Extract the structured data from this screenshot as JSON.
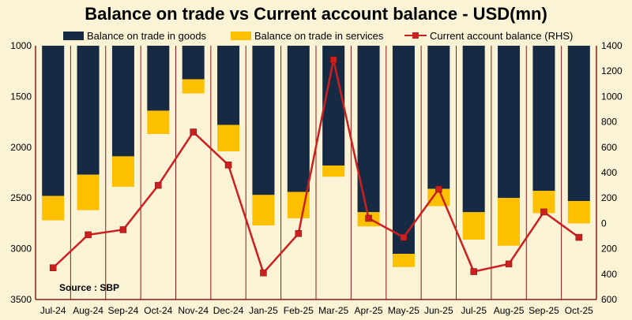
{
  "chart_data": {
    "type": "bar",
    "title": "Balance on trade vs Current account balance - USD(mn)",
    "categories": [
      "Jul-24",
      "Aug-24",
      "Sep-24",
      "Oct-24",
      "Nov-24",
      "Dec-24",
      "Jan-25",
      "Feb-25",
      "Mar-25",
      "Apr-25",
      "May-25",
      "Jun-25",
      "Jul-25",
      "Aug-25",
      "Sep-25",
      "Oct-25"
    ],
    "series": [
      {
        "name": "Balance on trade in goods",
        "type": "bar",
        "axis": "left",
        "color": "#162a44",
        "values": [
          2480,
          2270,
          2090,
          1640,
          1330,
          1780,
          2470,
          2440,
          2180,
          2640,
          3050,
          2410,
          2640,
          2500,
          2430,
          2530
        ]
      },
      {
        "name": "Balance on trade in services",
        "type": "bar",
        "axis": "left",
        "stacked": true,
        "color": "#fcc000",
        "values": [
          240,
          350,
          300,
          230,
          140,
          260,
          300,
          260,
          110,
          140,
          130,
          170,
          270,
          470,
          220,
          220
        ]
      },
      {
        "name": "Current account balance (RHS)",
        "type": "line",
        "axis": "right",
        "color": "#cc1f1f",
        "values": [
          -350,
          -90,
          -50,
          300,
          720,
          460,
          -390,
          -80,
          1290,
          40,
          -110,
          270,
          -380,
          -320,
          90,
          -110
        ]
      }
    ],
    "left_axis": {
      "inverted": true,
      "min": 1000,
      "max": 3500,
      "ticks": [
        "1000",
        "1500",
        "2000",
        "2500",
        "3000",
        "3500"
      ],
      "tick_values": [
        1000,
        1500,
        2000,
        2500,
        3000,
        3500
      ]
    },
    "right_axis": {
      "min": -600,
      "max": 1400,
      "ticks": [
        "1400",
        "1200",
        "1000",
        "800",
        "600",
        "400",
        "200",
        "0",
        "200",
        "400",
        "600"
      ],
      "tick_values": [
        1400,
        1200,
        1000,
        800,
        600,
        400,
        200,
        0,
        -200,
        -400,
        -600
      ]
    },
    "legend_position": "top",
    "grid": "vertical",
    "source": "Source : SBP"
  }
}
